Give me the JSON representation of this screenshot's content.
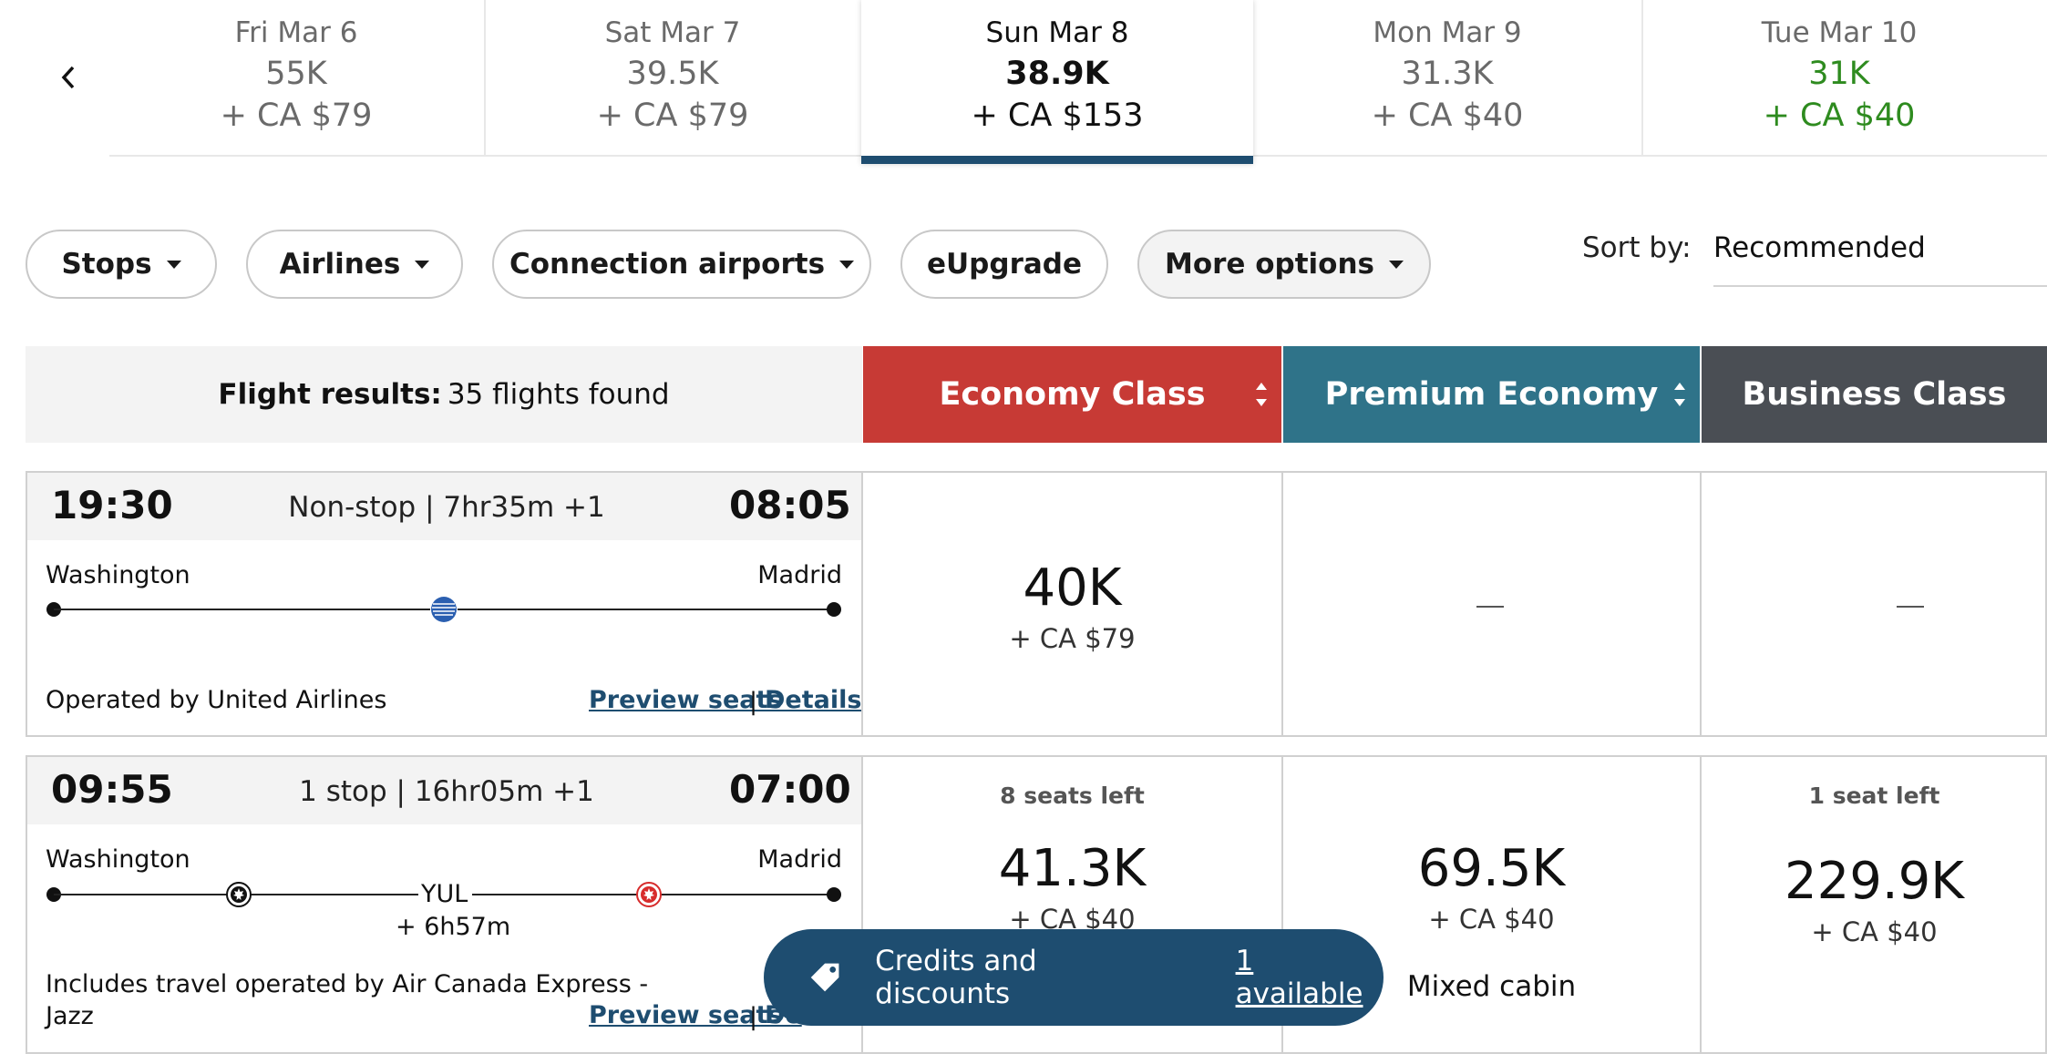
{
  "date_strip": {
    "prev_icon": "chevron-left-icon",
    "dates": [
      {
        "date": "Fri Mar 6",
        "points": "55K",
        "fee": "+ CA $79",
        "selected": false,
        "lowest": false
      },
      {
        "date": "Sat Mar 7",
        "points": "39.5K",
        "fee": "+ CA $79",
        "selected": false,
        "lowest": false
      },
      {
        "date": "Sun Mar 8",
        "points": "38.9K",
        "fee": "+ CA $153",
        "selected": true,
        "lowest": false
      },
      {
        "date": "Mon Mar 9",
        "points": "31.3K",
        "fee": "+ CA $40",
        "selected": false,
        "lowest": false
      },
      {
        "date": "Tue Mar 10",
        "points": "31K",
        "fee": "+ CA $40",
        "selected": false,
        "lowest": true
      }
    ]
  },
  "filters": {
    "stops": "Stops",
    "airlines": "Airlines",
    "connection_airports": "Connection airports",
    "eupgrade": "eUpgrade",
    "more_options": "More options"
  },
  "sort": {
    "label": "Sort by:",
    "value": "Recommended"
  },
  "results_header": {
    "label": "Flight results:",
    "count": "35 flights found"
  },
  "cabins": {
    "economy": "Economy Class",
    "premium": "Premium Economy",
    "business": "Business Class"
  },
  "colors": {
    "economy": "#c73a35",
    "premium": "#2f7389",
    "business": "#4a4e54",
    "selected_date_bar": "#1e4d70",
    "lowest_price": "#2e8b1f",
    "credits_banner": "#1e4d70"
  },
  "flights": [
    {
      "depart": "19:30",
      "arrive": "08:05",
      "summary": "Non-stop | 7hr35m +1",
      "origin": "Washington",
      "destination": "Madrid",
      "operated_by": "Operated by United Airlines",
      "preview_seats": "Preview seats",
      "separator": "|",
      "details": "Details",
      "economy": {
        "points": "40K",
        "fee": "+ CA $79"
      },
      "premium": {
        "dash": "—"
      },
      "business": {
        "dash": "—"
      }
    },
    {
      "depart": "09:55",
      "arrive": "07:00",
      "summary": "1 stop | 16hr05m +1",
      "origin": "Washington",
      "destination": "Madrid",
      "connection": "YUL",
      "layover": "+ 6h57m",
      "operated_by_line1": "Includes travel operated by Air Canada Express -",
      "operated_by_line2": "Jazz",
      "preview_seats": "Preview seats",
      "separator": "|",
      "details_partial": "De",
      "economy": {
        "seats_left": "8 seats left",
        "points": "41.3K",
        "fee_partial": "+ CA $40"
      },
      "premium": {
        "points": "69.5K",
        "fee": "+ CA $40",
        "note": "Mixed cabin"
      },
      "business": {
        "seats_left": "1 seat left",
        "points": "229.9K",
        "fee": "+ CA $40"
      }
    }
  ],
  "credits_banner": {
    "icon": "tag-icon",
    "text": "Credits and discounts",
    "link": "1 available"
  }
}
